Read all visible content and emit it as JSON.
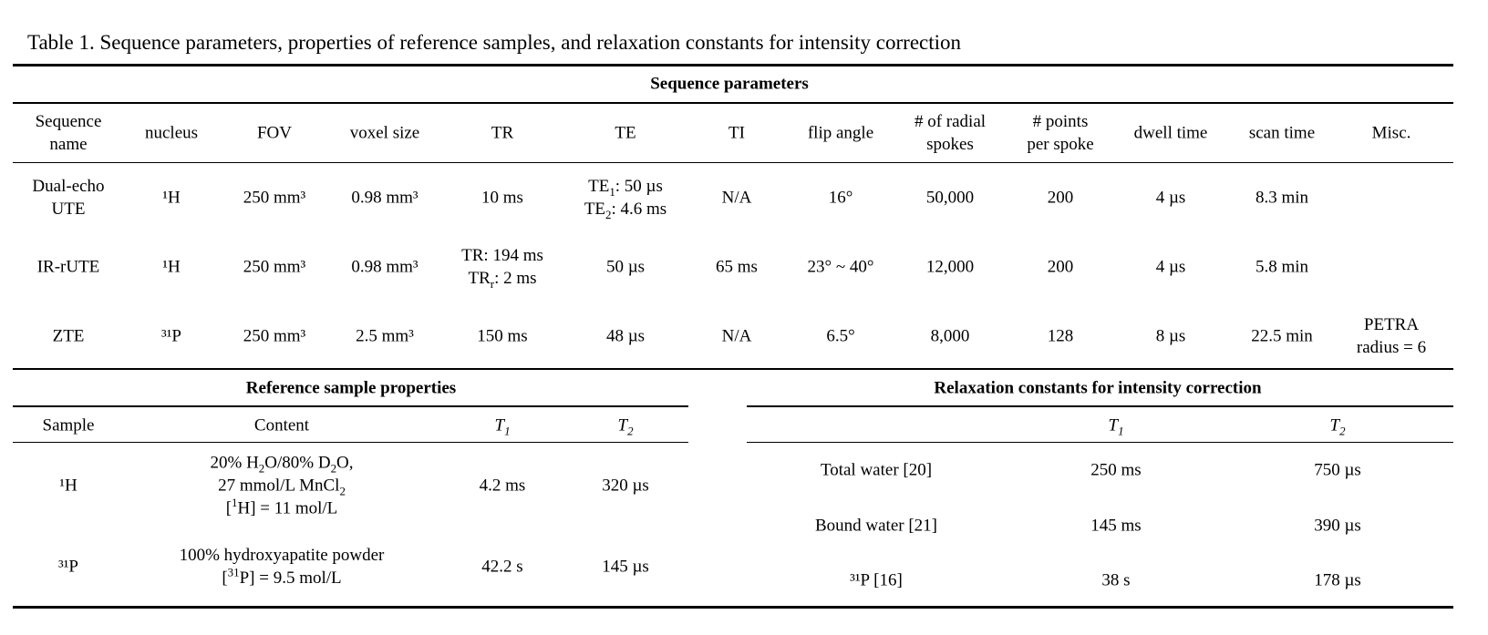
{
  "caption": "Table 1. Sequence parameters, properties of reference samples, and relaxation constants for intensity correction",
  "sequence": {
    "title": "Sequence parameters",
    "headers": [
      "Sequence name",
      "nucleus",
      "FOV",
      "voxel size",
      "TR",
      "TE",
      "TI",
      "flip angle",
      "# of radial spokes",
      "# points per spoke",
      "dwell time",
      "scan time",
      "Misc."
    ],
    "rows": [
      [
        "Dual-echo UTE",
        "¹H",
        "250 mm³",
        "0.98 mm³",
        "10 ms",
        "TE₁: 50 µs / TE₂: 4.6 ms",
        "N/A",
        "16°",
        "50,000",
        "200",
        "4 µs",
        "8.3 min",
        ""
      ],
      [
        "IR-rUTE",
        "¹H",
        "250 mm³",
        "0.98 mm³",
        "TR: 194 ms / TRᵣ: 2 ms",
        "50 µs",
        "65 ms",
        "23° ~ 40°",
        "12,000",
        "200",
        "4 µs",
        "5.8 min",
        ""
      ],
      [
        "ZTE",
        "³¹P",
        "250 mm³",
        "2.5 mm³",
        "150 ms",
        "48 µs",
        "N/A",
        "6.5°",
        "8,000",
        "128",
        "8 µs",
        "22.5 min",
        "PETRA radius = 6"
      ]
    ]
  },
  "reference": {
    "title": "Reference sample properties",
    "headers": [
      "Sample",
      "Content",
      "T1",
      "T2"
    ],
    "rows": [
      [
        "¹H",
        "20% H₂O/80% D₂O, 27 mmol/L MnCl₂ [¹H] = 11 mol/L",
        "4.2 ms",
        "320 µs"
      ],
      [
        "³¹P",
        "100% hydroxyapatite powder [³¹P] = 9.5 mol/L",
        "42.2 s",
        "145 µs"
      ]
    ]
  },
  "relaxation": {
    "title": "Relaxation constants for intensity correction",
    "headers": [
      "",
      "T1",
      "T2"
    ],
    "rows": [
      [
        "Total water [20]",
        "250 ms",
        "750 µs"
      ],
      [
        "Bound water [21]",
        "145 ms",
        "390 µs"
      ],
      [
        "³¹P [16]",
        "38 s",
        "178 µs"
      ]
    ]
  }
}
